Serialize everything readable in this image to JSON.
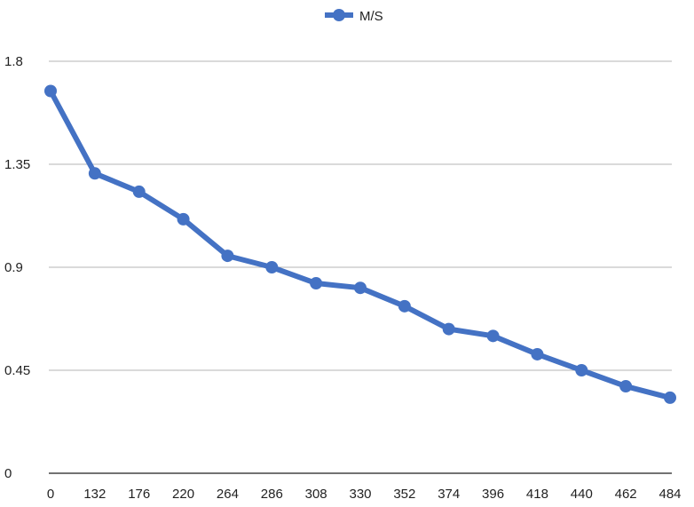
{
  "chart_data": {
    "type": "line",
    "x": [
      "0",
      "132",
      "176",
      "220",
      "264",
      "286",
      "308",
      "330",
      "352",
      "374",
      "396",
      "418",
      "440",
      "462",
      "484"
    ],
    "series": [
      {
        "name": "M/S",
        "color": "#4472C4",
        "values": [
          1.67,
          1.31,
          1.23,
          1.11,
          0.95,
          0.9,
          0.83,
          0.81,
          0.73,
          0.63,
          0.6,
          0.52,
          0.45,
          0.38,
          0.33
        ]
      }
    ],
    "y_ticks": [
      "0",
      "0.45",
      "0.9",
      "1.35",
      "1.8"
    ],
    "ylim": [
      0,
      1.8
    ],
    "grid": true,
    "legend": "top-center",
    "xlabel": "",
    "ylabel": "",
    "title": ""
  }
}
